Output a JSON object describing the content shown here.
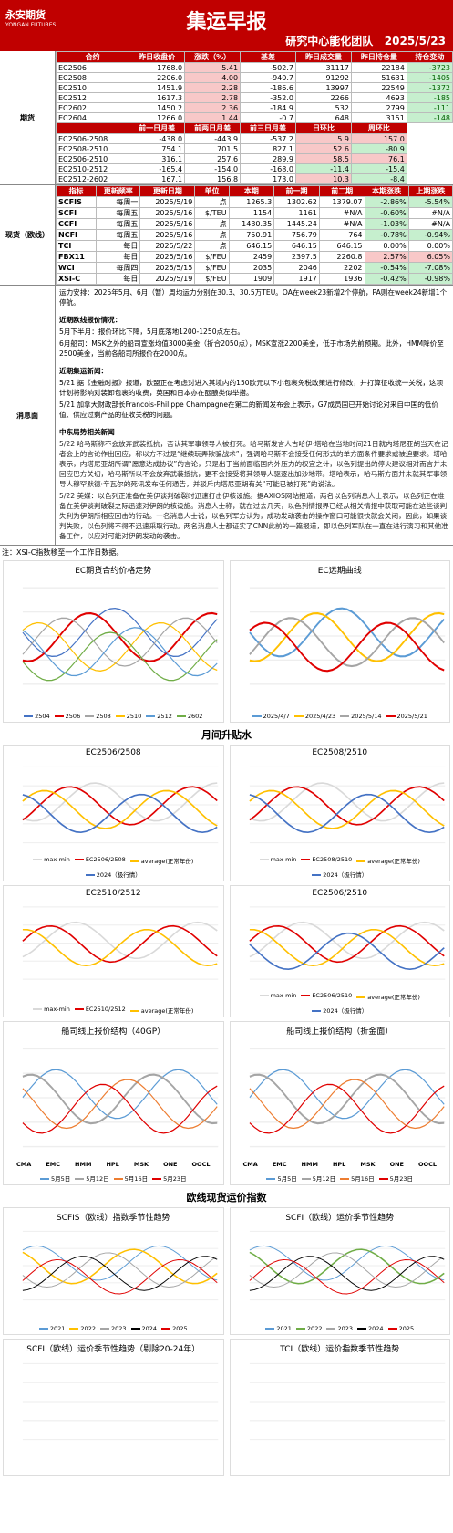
{
  "header": {
    "logo": "永安期货",
    "logo_en": "YONGAN FUTURES",
    "title": "集运早报",
    "team": "研究中心能化团队",
    "date": "2025/5/23"
  },
  "futures": {
    "label": "期货",
    "head": [
      "合约",
      "昨日收盘价",
      "涨跌（%）",
      "基差",
      "昨日成交量",
      "昨日持仓量",
      "持仓变动"
    ],
    "rows": [
      [
        "EC2506",
        "1768.0",
        "5.41",
        "-502.7",
        "31117",
        "22184",
        "-3723"
      ],
      [
        "EC2508",
        "2206.0",
        "4.00",
        "-940.7",
        "91292",
        "51631",
        "-1405"
      ],
      [
        "EC2510",
        "1451.9",
        "2.28",
        "-186.6",
        "13997",
        "22549",
        "-1372"
      ],
      [
        "EC2512",
        "1617.3",
        "2.78",
        "-352.0",
        "2266",
        "4693",
        "-185"
      ],
      [
        "EC2602",
        "1450.2",
        "2.36",
        "-184.9",
        "532",
        "2799",
        "-111"
      ],
      [
        "EC2604",
        "1266.0",
        "1.44",
        "-0.7",
        "648",
        "3151",
        "-148"
      ]
    ],
    "spread_head": [
      "前一日月差",
      "前两日月差",
      "前三日月差",
      "日环比",
      "周环比"
    ],
    "spread_rows": [
      [
        "EC2506-2508",
        "-438.0",
        "-443.9",
        "-537.2",
        "5.9",
        "157.0"
      ],
      [
        "EC2508-2510",
        "754.1",
        "701.5",
        "827.1",
        "52.6",
        "-80.9"
      ],
      [
        "EC2506-2510",
        "316.1",
        "257.6",
        "289.9",
        "58.5",
        "76.1"
      ],
      [
        "EC2510-2512",
        "-165.4",
        "-154.0",
        "-168.0",
        "-11.4",
        "-15.4"
      ],
      [
        "EC2512-2602",
        "167.1",
        "156.8",
        "173.0",
        "10.3",
        "-8.4"
      ]
    ]
  },
  "spot": {
    "label": "现货（欧线）",
    "head": [
      "指标",
      "更新频率",
      "更新日期",
      "单位",
      "本期",
      "前一期",
      "前二期",
      "本期涨跌",
      "上期涨跌"
    ],
    "rows": [
      [
        "SCFIS",
        "每周一",
        "2025/5/19",
        "点",
        "1265.3",
        "1302.62",
        "1379.07",
        "-2.86%",
        "-5.54%"
      ],
      [
        "SCFI",
        "每周五",
        "2025/5/16",
        "$/TEU",
        "1154",
        "1161",
        "#N/A",
        "-0.60%",
        "#N/A"
      ],
      [
        "CCFI",
        "每周五",
        "2025/5/16",
        "点",
        "1430.35",
        "1445.24",
        "#N/A",
        "-1.03%",
        "#N/A"
      ],
      [
        "NCFI",
        "每周五",
        "2025/5/16",
        "点",
        "750.91",
        "756.79",
        "764",
        "-0.78%",
        "-0.94%"
      ],
      [
        "TCI",
        "每日",
        "2025/5/22",
        "点",
        "646.15",
        "646.15",
        "646.15",
        "0.00%",
        "0.00%"
      ],
      [
        "FBX11",
        "每日",
        "2025/5/16",
        "$/FEU",
        "2459",
        "2397.5",
        "2260.8",
        "2.57%",
        "6.05%"
      ],
      [
        "WCI",
        "每周四",
        "2025/5/15",
        "$/FEU",
        "2035",
        "2046",
        "2202",
        "-0.54%",
        "-7.08%"
      ],
      [
        "XSI-C",
        "每日",
        "2025/5/19",
        "$/FEU",
        "1909",
        "1917",
        "1936",
        "-0.42%",
        "-0.98%"
      ]
    ]
  },
  "news": {
    "label": "消息面",
    "paragraphs": [
      "运力安排：2025年5月、6月（暂）周均运力分别在30.3、30.5万TEU。OA在week23新增2个停航，PA则在week24新增1个停航。",
      "近期欧线报价情况：",
      "5月下半月：报价环比下降，5月底落地1200-1250点左右。",
      "6月船司：MSK之外的船司宣涨均值3000美金（折合2050点），MSK宣涨2200美金，低于市场先前预期。此外，HMM降价至2500美金，当前各船司所报价在2000点。",
      "近期集运新闻：",
      "5/21 据《金融时报》报道，欧盟正在考虑对进入其境内的150欧元以下小包裹免税政策进行修改，并打算征收统一关税，这项计划将影响对装卸包裹的收费，英国和日本亦在酝酿类似举措。",
      "5/21 加拿大财政部长Francois-Philippe Champagne在第二的新闻发布会上表示，G7成员国已开始讨论对来自中国的低价值、供应过剩产品的征收关税的问题。",
      "中东局势相关新闻",
      "5/22 哈马斯称不会放弃武装抵抗，否认其军事领导人被打死。哈马斯发言人古哈伊·塔哈在当地时间21日就内塔尼亚胡当天在记者会上的言论作出回应，称以方不过是“继续玩弄欺骗战术”，强调哈马斯不会接受任何形式的单方面条件要求或被迫要求。塔哈表示，内塔尼亚胡所谓“愿意达成协议”的言论，只是出于当前面临国内外压力的权宜之计，以色列提出的停火建议相对而言并未回应巴方关切，哈马斯所以不会放弃武装抵抗，更不会接受将其领导人驱逐出加沙地带。塔哈表示，哈马斯方面并未就其军事领导人穆罕默德·辛瓦尔的死讯发布任何通告，并驳斥内塔尼亚胡有关“可能已被打死”的说法。",
      "5/22 美媒：以色列正准备在美伊谈判破裂时迅速打击伊核设施。据AXIOS网站报道，两名以色列消息人士表示，以色列正在准备在美伊谈判破裂之际迅速对伊朗的核设施。消息人士称，就在过去几天，以色列情报界已经从相关情报中获取可能在这些谈判失利为伊朗所相应回击的行动。一名消息人士说，以色列军方认为，成功发动袭击的操作窗口可能很快就会关闭，因此，如果谈判失败，以色列将不得不迅速采取行动。两名消息人士都证实了CNN此前的一篇报道，即以色列军队在一直在进行演习和其他准备工作，以应对可能对伊朗发动的袭击。"
    ],
    "note": "注：XSI-C指数移至一个工作日数据。"
  },
  "chart_rows": [
    {
      "charts": [
        {
          "title": "EC期货合约价格走势",
          "legend": [
            {
              "name": "2504",
              "color": "#4472c4"
            },
            {
              "name": "2506",
              "color": "#e00000"
            },
            {
              "name": "2508",
              "color": "#a5a5a5"
            },
            {
              "name": "2510",
              "color": "#ffc000"
            },
            {
              "name": "2512",
              "color": "#5b9bd5"
            },
            {
              "name": "2602",
              "color": "#70ad47"
            }
          ]
        },
        {
          "title": "EC远期曲线",
          "legend": [
            {
              "name": "2025/4/7",
              "color": "#5b9bd5"
            },
            {
              "name": "2025/4/23",
              "color": "#ffc000"
            },
            {
              "name": "2025/5/14",
              "color": "#a5a5a5"
            },
            {
              "name": "2025/5/21",
              "color": "#e00000"
            }
          ]
        }
      ]
    },
    {
      "heading": "月间升贴水",
      "charts": [
        {
          "title": "EC2506/2508",
          "legend": [
            {
              "name": "max-min",
              "color": "#d9d9d9"
            },
            {
              "name": "EC2506/2508",
              "color": "#e00000"
            },
            {
              "name": "average(正常年份)",
              "color": "#ffc000"
            },
            {
              "name": "2024（极行情）",
              "color": "#4472c4"
            }
          ]
        },
        {
          "title": "EC2508/2510",
          "legend": [
            {
              "name": "max-min",
              "color": "#d9d9d9"
            },
            {
              "name": "EC2508/2510",
              "color": "#e00000"
            },
            {
              "name": "average(正常年份)",
              "color": "#ffc000"
            },
            {
              "name": "2024（极行情）",
              "color": "#4472c4"
            }
          ]
        }
      ]
    },
    {
      "charts": [
        {
          "title": "EC2510/2512",
          "legend": [
            {
              "name": "max-min",
              "color": "#d9d9d9"
            },
            {
              "name": "EC2510/2512",
              "color": "#e00000"
            },
            {
              "name": "average(正常年份)",
              "color": "#ffc000"
            }
          ]
        },
        {
          "title": "EC2506/2510",
          "legend": [
            {
              "name": "max-min",
              "color": "#d9d9d9"
            },
            {
              "name": "EC2506/2510",
              "color": "#e00000"
            },
            {
              "name": "average(正常年份)",
              "color": "#ffc000"
            },
            {
              "name": "2024（极行情）",
              "color": "#4472c4"
            }
          ]
        }
      ]
    },
    {
      "charts": [
        {
          "title": "船司线上报价结构（40GP）",
          "legend": [
            {
              "name": "5月5日",
              "color": "#5b9bd5"
            },
            {
              "name": "5月12日",
              "color": "#a5a5a5"
            },
            {
              "name": "5月16日",
              "color": "#ed7d31"
            },
            {
              "name": "5月23日",
              "color": "#e00000"
            }
          ],
          "categories": [
            "CMA",
            "EMC",
            "HMM",
            "HPL",
            "MSK",
            "ONE",
            "OOCL"
          ]
        },
        {
          "title": "船司线上报价结构（折金面）",
          "legend": [
            {
              "name": "5月5日",
              "color": "#5b9bd5"
            },
            {
              "name": "5月12日",
              "color": "#a5a5a5"
            },
            {
              "name": "5月16日",
              "color": "#ed7d31"
            },
            {
              "name": "5月23日",
              "color": "#e00000"
            }
          ],
          "categories": [
            "CMA",
            "EMC",
            "HMM",
            "HPL",
            "MSK",
            "ONE",
            "OOCL"
          ]
        }
      ]
    },
    {
      "heading": "欧线现货运价指数",
      "charts": [
        {
          "title": "SCFIS（欧线）指数季节性趋势",
          "legend": [
            {
              "name": "2021",
              "color": "#5b9bd5"
            },
            {
              "name": "2022",
              "color": "#ffc000"
            },
            {
              "name": "2023",
              "color": "#a5a5a5"
            },
            {
              "name": "2024",
              "color": "#000000"
            },
            {
              "name": "2025",
              "color": "#e00000"
            }
          ]
        },
        {
          "title": "SCFI（欧线）运价季节性趋势",
          "legend": [
            {
              "name": "2021",
              "color": "#5b9bd5"
            },
            {
              "name": "2022",
              "color": "#70ad47"
            },
            {
              "name": "2023",
              "color": "#a5a5a5"
            },
            {
              "name": "2024",
              "color": "#000000"
            },
            {
              "name": "2025",
              "color": "#e00000"
            }
          ]
        }
      ]
    },
    {
      "charts": [
        {
          "title": "SCFI（欧线）运价季节性趋势（剔除20-24年）",
          "legend": []
        },
        {
          "title": "TCI（欧线）运价指数季节性趋势",
          "legend": []
        }
      ]
    }
  ]
}
